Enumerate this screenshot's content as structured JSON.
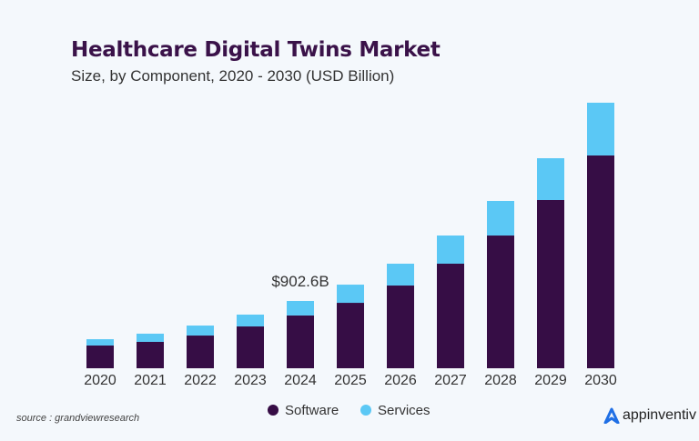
{
  "chart_data": {
    "type": "bar",
    "stacked": true,
    "title": "Healthcare Digital Twins Market",
    "subtitle": "Size, by Component, 2020 - 2030 (USD Billion)",
    "categories": [
      "2020",
      "2021",
      "2022",
      "2023",
      "2024",
      "2025",
      "2026",
      "2027",
      "2028",
      "2029",
      "2030"
    ],
    "series": [
      {
        "name": "Software",
        "color": "#360d45",
        "values": [
          305,
          354,
          439,
          561,
          708,
          878,
          1110,
          1403,
          1781,
          2257,
          2855
        ]
      },
      {
        "name": "Services",
        "color": "#5bc8f5",
        "values": [
          85,
          110,
          134,
          159,
          195,
          244,
          293,
          378,
          464,
          561,
          708
        ]
      }
    ],
    "annotation": {
      "category": "2024",
      "text": "$902.6B"
    },
    "grid": false,
    "legend": "bottom"
  },
  "source": "source : grandviewresearch",
  "logo": "appinventiv"
}
